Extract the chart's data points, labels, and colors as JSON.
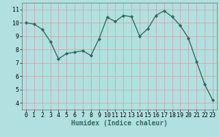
{
  "x": [
    0,
    1,
    2,
    3,
    4,
    5,
    6,
    7,
    8,
    9,
    10,
    11,
    12,
    13,
    14,
    15,
    16,
    17,
    18,
    19,
    20,
    21,
    22,
    23
  ],
  "y": [
    10.0,
    9.9,
    9.5,
    8.6,
    7.3,
    7.7,
    7.8,
    7.9,
    7.55,
    8.8,
    10.4,
    10.1,
    10.55,
    10.45,
    9.0,
    9.55,
    10.55,
    10.9,
    10.45,
    9.8,
    8.85,
    7.1,
    5.4,
    4.2
  ],
  "line_color": "#2e6b5e",
  "marker": "D",
  "marker_size": 2.2,
  "bg_color": "#b2e0e0",
  "grid_color": "#c8a8a8",
  "xlabel": "Humidex (Indice chaleur)",
  "ylim": [
    3.5,
    11.5
  ],
  "xlim": [
    -0.5,
    23.5
  ],
  "yticks": [
    4,
    5,
    6,
    7,
    8,
    9,
    10,
    11
  ],
  "xticks": [
    0,
    1,
    2,
    3,
    4,
    5,
    6,
    7,
    8,
    9,
    10,
    11,
    12,
    13,
    14,
    15,
    16,
    17,
    18,
    19,
    20,
    21,
    22,
    23
  ],
  "tick_fontsize": 6.0,
  "xlabel_fontsize": 7.0,
  "linewidth": 1.0
}
